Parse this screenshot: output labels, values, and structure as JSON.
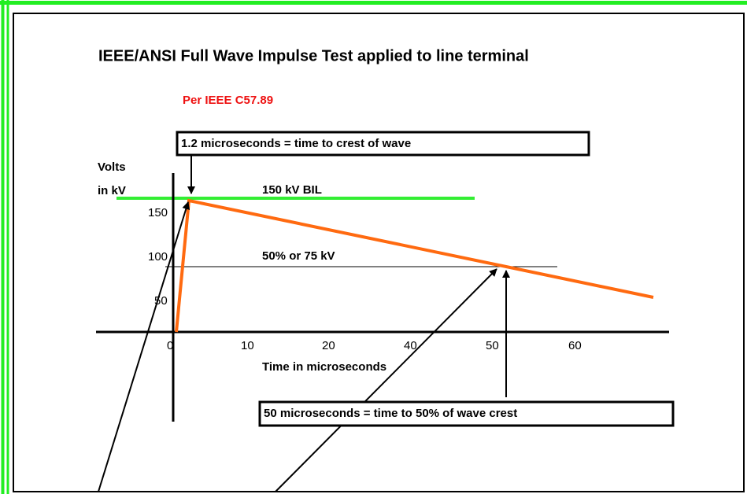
{
  "title": "IEEE/ANSI Full Wave Impulse Test applied to line terminal",
  "subtitle": "Per IEEE C57.89",
  "annotations": {
    "crest": "1.2 microseconds = time to crest of wave",
    "half": "50 microseconds = time to 50% of wave crest",
    "bil": "150 kV BIL",
    "half_level": "50% or 75 kV"
  },
  "axes": {
    "y_label": [
      "Volts",
      "in kV"
    ],
    "x_label": "Time in microseconds",
    "y_ticks": [
      "150",
      "100",
      "50"
    ],
    "x_ticks": [
      "0",
      "10",
      "20",
      "40",
      "50",
      "60"
    ]
  }
}
